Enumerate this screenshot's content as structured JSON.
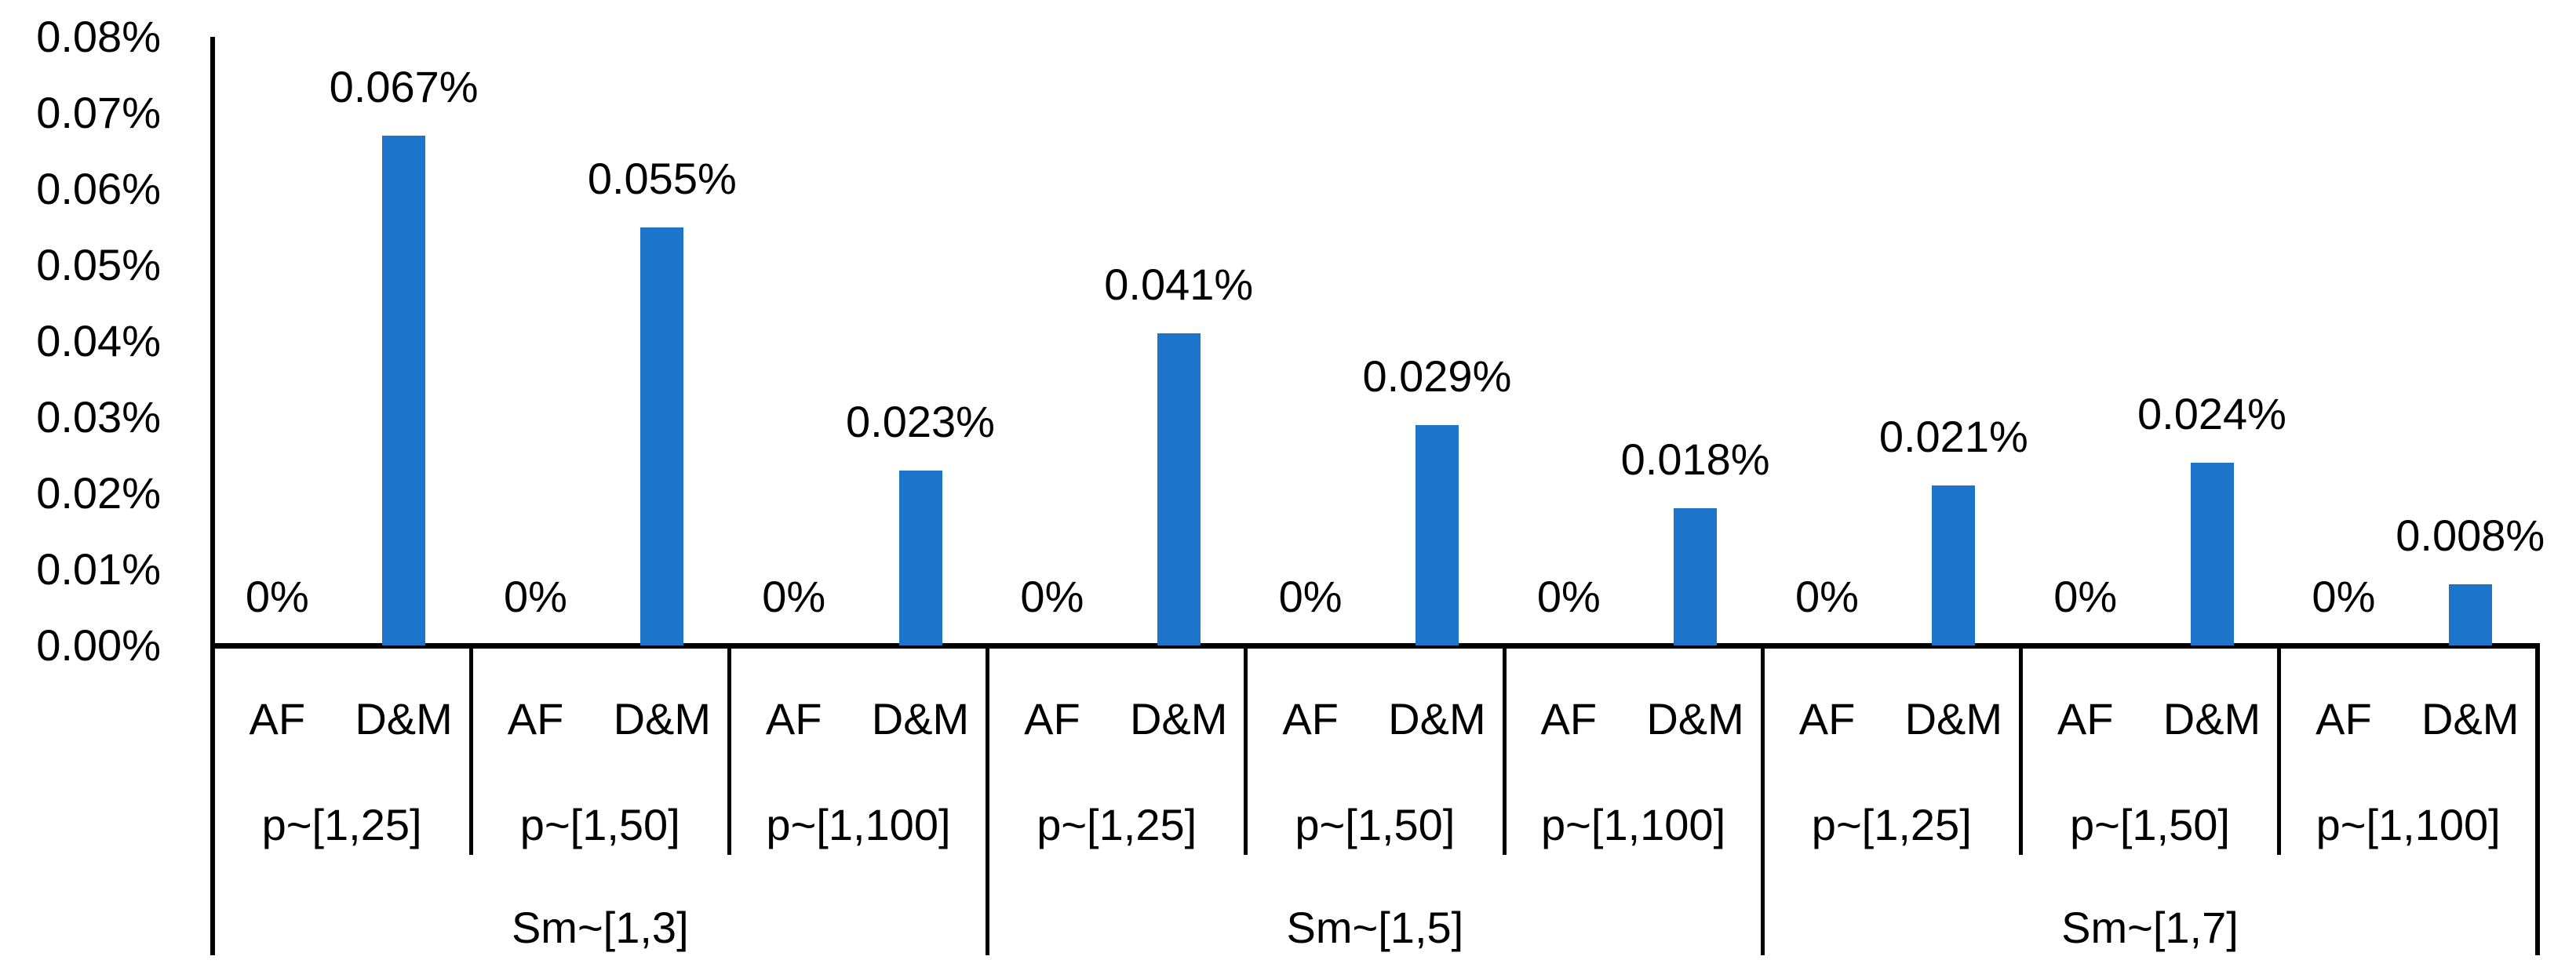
{
  "chart_data": {
    "type": "bar",
    "title": "",
    "xlabel": "",
    "ylabel": "",
    "unit": "percent",
    "ylim_pct": [
      0,
      0.08
    ],
    "ytick_step_pct": 0.01,
    "ytick_labels": [
      "0.00%",
      "0.01%",
      "0.02%",
      "0.03%",
      "0.04%",
      "0.05%",
      "0.06%",
      "0.07%",
      "0.08%"
    ],
    "grid": false,
    "legend_position": "none",
    "series": [
      "AF",
      "D&M"
    ],
    "bar_color": "#1C75CB",
    "groups": [
      {
        "group_label": "Sm~[1,3]",
        "subgroups": [
          {
            "label": "p~[1,25]",
            "AF_pct": 0,
            "DM_pct": 0.067,
            "AF_data_label": "0%",
            "DM_data_label": "0.067%"
          },
          {
            "label": "p~[1,50]",
            "AF_pct": 0,
            "DM_pct": 0.055,
            "AF_data_label": "0%",
            "DM_data_label": "0.055%"
          },
          {
            "label": "p~[1,100]",
            "AF_pct": 0,
            "DM_pct": 0.023,
            "AF_data_label": "0%",
            "DM_data_label": "0.023%"
          }
        ]
      },
      {
        "group_label": "Sm~[1,5]",
        "subgroups": [
          {
            "label": "p~[1,25]",
            "AF_pct": 0,
            "DM_pct": 0.041,
            "AF_data_label": "0%",
            "DM_data_label": "0.041%"
          },
          {
            "label": "p~[1,50]",
            "AF_pct": 0,
            "DM_pct": 0.029,
            "AF_data_label": "0%",
            "DM_data_label": "0.029%"
          },
          {
            "label": "p~[1,100]",
            "AF_pct": 0,
            "DM_pct": 0.018,
            "AF_data_label": "0%",
            "DM_data_label": "0.018%"
          }
        ]
      },
      {
        "group_label": "Sm~[1,7]",
        "subgroups": [
          {
            "label": "p~[1,25]",
            "AF_pct": 0,
            "DM_pct": 0.021,
            "AF_data_label": "0%",
            "DM_data_label": "0.021%"
          },
          {
            "label": "p~[1,50]",
            "AF_pct": 0,
            "DM_pct": 0.024,
            "AF_data_label": "0%",
            "DM_data_label": "0.024%"
          },
          {
            "label": "p~[1,100]",
            "AF_pct": 0,
            "DM_pct": 0.008,
            "AF_data_label": "0%",
            "DM_data_label": "0.008%"
          }
        ]
      }
    ]
  },
  "colors": {
    "bar": "#1C75CB",
    "axis": "#000000",
    "text": "#000000",
    "background": "#FFFFFF"
  }
}
